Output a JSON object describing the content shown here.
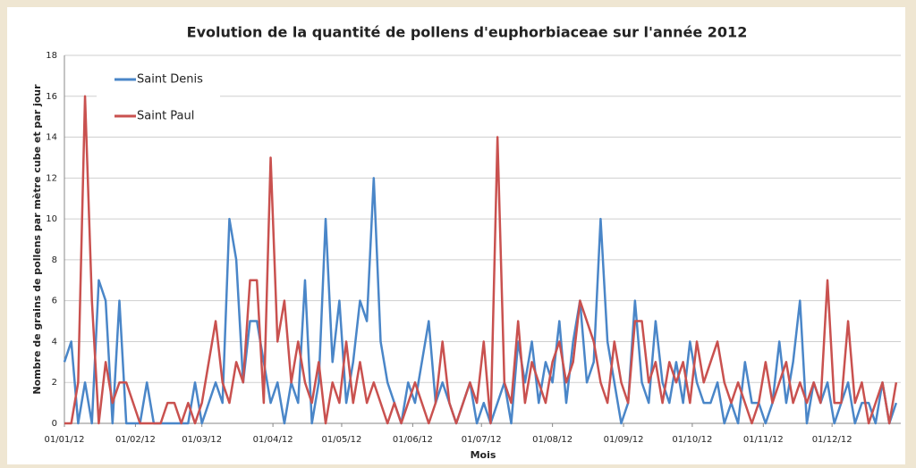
{
  "chart_data": {
    "type": "line",
    "title": "Evolution de la quantité de pollens d'euphorbiaceae sur l'année 2012",
    "x_label": "Mois",
    "y_label": "Nombre de grains de pollens par mètre cube et par jour",
    "x": [
      "2012-01-01",
      "2012-01-04",
      "2012-01-07",
      "2012-01-10",
      "2012-01-13",
      "2012-01-16",
      "2012-01-19",
      "2012-01-22",
      "2012-01-25",
      "2012-01-28",
      "2012-01-31",
      "2012-02-03",
      "2012-02-06",
      "2012-02-09",
      "2012-02-12",
      "2012-02-15",
      "2012-02-18",
      "2012-02-21",
      "2012-02-24",
      "2012-02-27",
      "2012-03-01",
      "2012-03-04",
      "2012-03-07",
      "2012-03-10",
      "2012-03-13",
      "2012-03-16",
      "2012-03-19",
      "2012-03-22",
      "2012-03-25",
      "2012-03-28",
      "2012-03-31",
      "2012-04-03",
      "2012-04-06",
      "2012-04-09",
      "2012-04-12",
      "2012-04-15",
      "2012-04-18",
      "2012-04-21",
      "2012-04-24",
      "2012-04-27",
      "2012-04-30",
      "2012-05-03",
      "2012-05-06",
      "2012-05-09",
      "2012-05-12",
      "2012-05-15",
      "2012-05-18",
      "2012-05-21",
      "2012-05-24",
      "2012-05-27",
      "2012-05-30",
      "2012-06-02",
      "2012-06-05",
      "2012-06-08",
      "2012-06-11",
      "2012-06-14",
      "2012-06-17",
      "2012-06-20",
      "2012-06-23",
      "2012-06-26",
      "2012-06-29",
      "2012-07-02",
      "2012-07-05",
      "2012-07-08",
      "2012-07-11",
      "2012-07-14",
      "2012-07-17",
      "2012-07-20",
      "2012-07-23",
      "2012-07-26",
      "2012-07-29",
      "2012-08-01",
      "2012-08-04",
      "2012-08-07",
      "2012-08-10",
      "2012-08-13",
      "2012-08-16",
      "2012-08-19",
      "2012-08-22",
      "2012-08-25",
      "2012-08-28",
      "2012-08-31",
      "2012-09-03",
      "2012-09-06",
      "2012-09-09",
      "2012-09-12",
      "2012-09-15",
      "2012-09-18",
      "2012-09-21",
      "2012-09-24",
      "2012-09-27",
      "2012-09-30",
      "2012-10-03",
      "2012-10-06",
      "2012-10-09",
      "2012-10-12",
      "2012-10-15",
      "2012-10-18",
      "2012-10-21",
      "2012-10-24",
      "2012-10-27",
      "2012-10-30",
      "2012-11-02",
      "2012-11-05",
      "2012-11-08",
      "2012-11-11",
      "2012-11-14",
      "2012-11-17",
      "2012-11-20",
      "2012-11-23",
      "2012-11-26",
      "2012-11-29",
      "2012-12-02",
      "2012-12-05",
      "2012-12-08",
      "2012-12-11",
      "2012-12-14",
      "2012-12-17",
      "2012-12-20",
      "2012-12-23",
      "2012-12-26",
      "2012-12-29"
    ],
    "series": [
      {
        "name": "Saint Denis",
        "color": "#4a86c8",
        "values": [
          3,
          4,
          0,
          2,
          0,
          7,
          6,
          0,
          6,
          0,
          0,
          0,
          2,
          0,
          0,
          0,
          0,
          0,
          0,
          2,
          0,
          1,
          2,
          1,
          10,
          8,
          2,
          5,
          5,
          3,
          1,
          2,
          0,
          2,
          1,
          7,
          0,
          2,
          10,
          3,
          6,
          1,
          3,
          6,
          5,
          12,
          4,
          2,
          1,
          0,
          2,
          1,
          3,
          5,
          1,
          2,
          1,
          0,
          1,
          2,
          0,
          1,
          0,
          1,
          2,
          0,
          4,
          2,
          4,
          1,
          3,
          2,
          5,
          1,
          4,
          6,
          2,
          3,
          10,
          4,
          2,
          0,
          1,
          6,
          2,
          1,
          5,
          2,
          1,
          3,
          1,
          4,
          2,
          1,
          1,
          2,
          0,
          1,
          0,
          3,
          1,
          1,
          0,
          1,
          4,
          1,
          3,
          6,
          0,
          2,
          1,
          2,
          0,
          1,
          2,
          0,
          1,
          1,
          0,
          2,
          0,
          1
        ]
      },
      {
        "name": "Saint Paul",
        "color": "#c9514f",
        "values": [
          0,
          0,
          2,
          16,
          6,
          0,
          3,
          1,
          2,
          2,
          1,
          0,
          0,
          0,
          0,
          1,
          1,
          0,
          1,
          0,
          1,
          3,
          5,
          2,
          1,
          3,
          2,
          7,
          7,
          1,
          13,
          4,
          6,
          2,
          4,
          2,
          1,
          3,
          0,
          2,
          1,
          4,
          1,
          3,
          1,
          2,
          1,
          0,
          1,
          0,
          1,
          2,
          1,
          0,
          1,
          4,
          1,
          0,
          1,
          2,
          1,
          4,
          0,
          14,
          2,
          1,
          5,
          1,
          3,
          2,
          1,
          3,
          4,
          2,
          3,
          6,
          5,
          4,
          2,
          1,
          4,
          2,
          1,
          5,
          5,
          2,
          3,
          1,
          3,
          2,
          3,
          1,
          4,
          2,
          3,
          4,
          2,
          1,
          2,
          1,
          0,
          1,
          3,
          1,
          2,
          3,
          1,
          2,
          1,
          2,
          1,
          7,
          1,
          1,
          5,
          1,
          2,
          0,
          1,
          2,
          0,
          2
        ]
      }
    ],
    "xlim": [
      "2012-01-01",
      "2012-12-31"
    ],
    "xticks": [
      {
        "value": "2012-01-01",
        "label": "01/01/12"
      },
      {
        "value": "2012-02-01",
        "label": "01/02/12"
      },
      {
        "value": "2012-03-01",
        "label": "01/03/12"
      },
      {
        "value": "2012-04-01",
        "label": "01/04/12"
      },
      {
        "value": "2012-05-01",
        "label": "01/05/12"
      },
      {
        "value": "2012-06-01",
        "label": "01/06/12"
      },
      {
        "value": "2012-07-01",
        "label": "01/07/12"
      },
      {
        "value": "2012-08-01",
        "label": "01/08/12"
      },
      {
        "value": "2012-09-01",
        "label": "01/09/12"
      },
      {
        "value": "2012-10-01",
        "label": "01/10/12"
      },
      {
        "value": "2012-11-01",
        "label": "01/11/12"
      },
      {
        "value": "2012-12-01",
        "label": "01/12/12"
      }
    ],
    "ylim": [
      0,
      18
    ],
    "yticks": [
      0,
      2,
      4,
      6,
      8,
      10,
      12,
      14,
      16,
      18
    ],
    "grid": true,
    "legend": "upper left"
  }
}
